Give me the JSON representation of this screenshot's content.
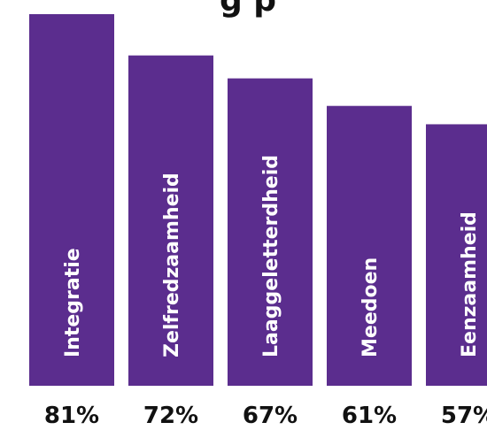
{
  "chart_data": {
    "type": "bar",
    "title_visible": "g p",
    "categories": [
      "Integratie",
      "Zelfredzaamheid",
      "Laaggeletterdheid",
      "Meedoen",
      "Eenzaamheid"
    ],
    "values": [
      81,
      72,
      67,
      61,
      57
    ],
    "value_labels": [
      "81%",
      "72%",
      "67%",
      "61%",
      "57%"
    ],
    "unit": "%",
    "ylim": [
      0,
      81
    ],
    "grid": false,
    "legend": "none",
    "bar_color": "#5b2d8e",
    "label_color": "#ffffff",
    "value_label_color": "#111111"
  }
}
